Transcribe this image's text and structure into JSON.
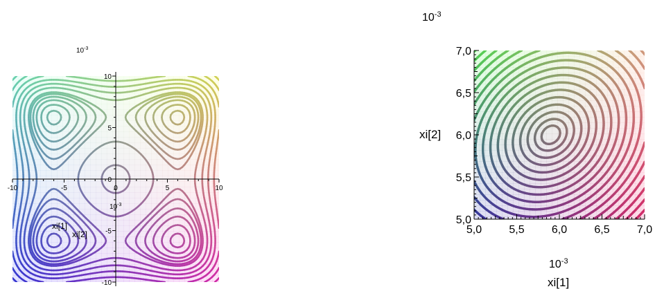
{
  "chart_data": [
    {
      "type": "contour",
      "title": "",
      "xlabel": "xi[1]",
      "ylabel": "xi[2]",
      "axis_scale_label": "10-3",
      "x_scale_label": "10-3",
      "xlim": [
        -10,
        10
      ],
      "ylim": [
        -10,
        10
      ],
      "x_ticks": [
        "-10",
        "-5",
        "0",
        "5",
        "10"
      ],
      "y_ticks": [
        "10",
        "5",
        "0",
        "-5",
        "-10"
      ],
      "axes_style": "crossing at origin",
      "grid": false,
      "contour_levels": 14,
      "minima_near": [
        [
          -6,
          6
        ],
        [
          6,
          6
        ],
        [
          -6,
          -6
        ],
        [
          6,
          -6
        ]
      ],
      "local_extremum_at": [
        0,
        0
      ],
      "colors": [
        "#7fffd4",
        "#ffff66",
        "#4040ff",
        "#ff33cc",
        "#808060"
      ]
    },
    {
      "type": "contour",
      "title": "",
      "xlabel": "xi[1]",
      "ylabel": "xi[2]",
      "axis_scale_label": "10-3",
      "x_scale_label": "10-3",
      "xlim": [
        5.0,
        7.0
      ],
      "ylim": [
        5.0,
        7.0
      ],
      "x_ticks": [
        "5,0",
        "5,5",
        "6,0",
        "6,5",
        "7,0"
      ],
      "y_ticks": [
        "7,0",
        "6,5",
        "6,0",
        "5,5",
        "5,0"
      ],
      "axes_style": "boxed, bottom-left",
      "grid": false,
      "contour_levels": 20,
      "minimum_near": [
        5.9,
        6.0
      ],
      "colors": [
        "#66ff66",
        "#ffbb99",
        "#4040c0",
        "#ff3380",
        "#506040"
      ]
    }
  ]
}
